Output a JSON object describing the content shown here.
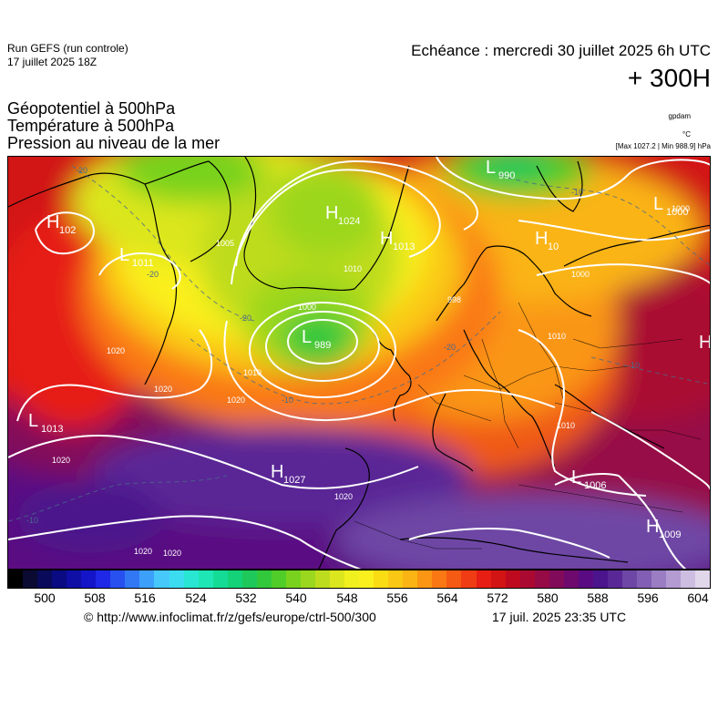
{
  "header": {
    "run_name": "Run GEFS (run controle)",
    "run_date": "17 juillet 2025 18Z",
    "forecast_time": "Echéance : mercredi 30 juillet 2025 6h UTC",
    "lead_time": "+ 300H"
  },
  "titles": {
    "line1": "Géopotentiel à 500hPa",
    "line2": "Température à 500hPa",
    "line3": "Pression au niveau de la mer"
  },
  "units": {
    "geopotential": "gpdam",
    "temperature": "°C",
    "pressure_extremes": "[Max 1027.2 | Min 988.9] hPa"
  },
  "map": {
    "pressure_centers": [
      {
        "type": "H",
        "value": "102"
      },
      {
        "type": "L",
        "value": "1011"
      },
      {
        "type": "H",
        "value": "1024"
      },
      {
        "type": "H",
        "value": "1013"
      },
      {
        "type": "L",
        "value": "990"
      },
      {
        "type": "L",
        "value": "1000"
      },
      {
        "type": "H",
        "value": "10"
      },
      {
        "type": "L",
        "value": "989"
      },
      {
        "type": "L",
        "value": "1013"
      },
      {
        "type": "H",
        "value": "1027"
      },
      {
        "type": "L",
        "value": "1006"
      },
      {
        "type": "H",
        "value": "1009"
      },
      {
        "type": "H",
        "value": ""
      }
    ],
    "isobar_labels": [
      "1005",
      "1010",
      "1000",
      "1010",
      "1020",
      "1020",
      "1020",
      "1020",
      "1020",
      "1010",
      "1000",
      "1010",
      "1000",
      "1020",
      "1020",
      "998"
    ],
    "temperature_labels": [
      "-20",
      "-20",
      "-20",
      "-20",
      "-10",
      "-10",
      "-10",
      "-10"
    ]
  },
  "colorbar": {
    "colors": [
      "#000000",
      "#0a0a32",
      "#0a0a5a",
      "#0a0a82",
      "#0f0fa6",
      "#1414c8",
      "#1e28e6",
      "#2850f0",
      "#3278f5",
      "#3ca0fa",
      "#46c8fa",
      "#3cdcf0",
      "#28e6d2",
      "#1ee6b4",
      "#14dc96",
      "#14d278",
      "#1ec85a",
      "#32c83c",
      "#50cd28",
      "#78d21e",
      "#9bd71e",
      "#bedc1e",
      "#dce61e",
      "#f0f01e",
      "#faf01e",
      "#fadc14",
      "#fac814",
      "#fab414",
      "#fa9614",
      "#fa7814",
      "#f55a14",
      "#f03c14",
      "#e61e14",
      "#d21414",
      "#be0a1e",
      "#aa0a32",
      "#960a46",
      "#820a5a",
      "#6e0a6e",
      "#5a0a82",
      "#4b148c",
      "#5a2896",
      "#6e46a5",
      "#825fb4",
      "#9b7dc3",
      "#b49bd2",
      "#cdbee1",
      "#e1d7eb"
    ],
    "labels": [
      "500",
      "508",
      "516",
      "524",
      "532",
      "540",
      "548",
      "556",
      "564",
      "572",
      "580",
      "588",
      "596",
      "604"
    ]
  },
  "footer": {
    "credit": "© http://www.infoclimat.fr/z/gefs/europe/ctrl-500/300",
    "issued": "17 juil. 2025 23:35 UTC"
  }
}
